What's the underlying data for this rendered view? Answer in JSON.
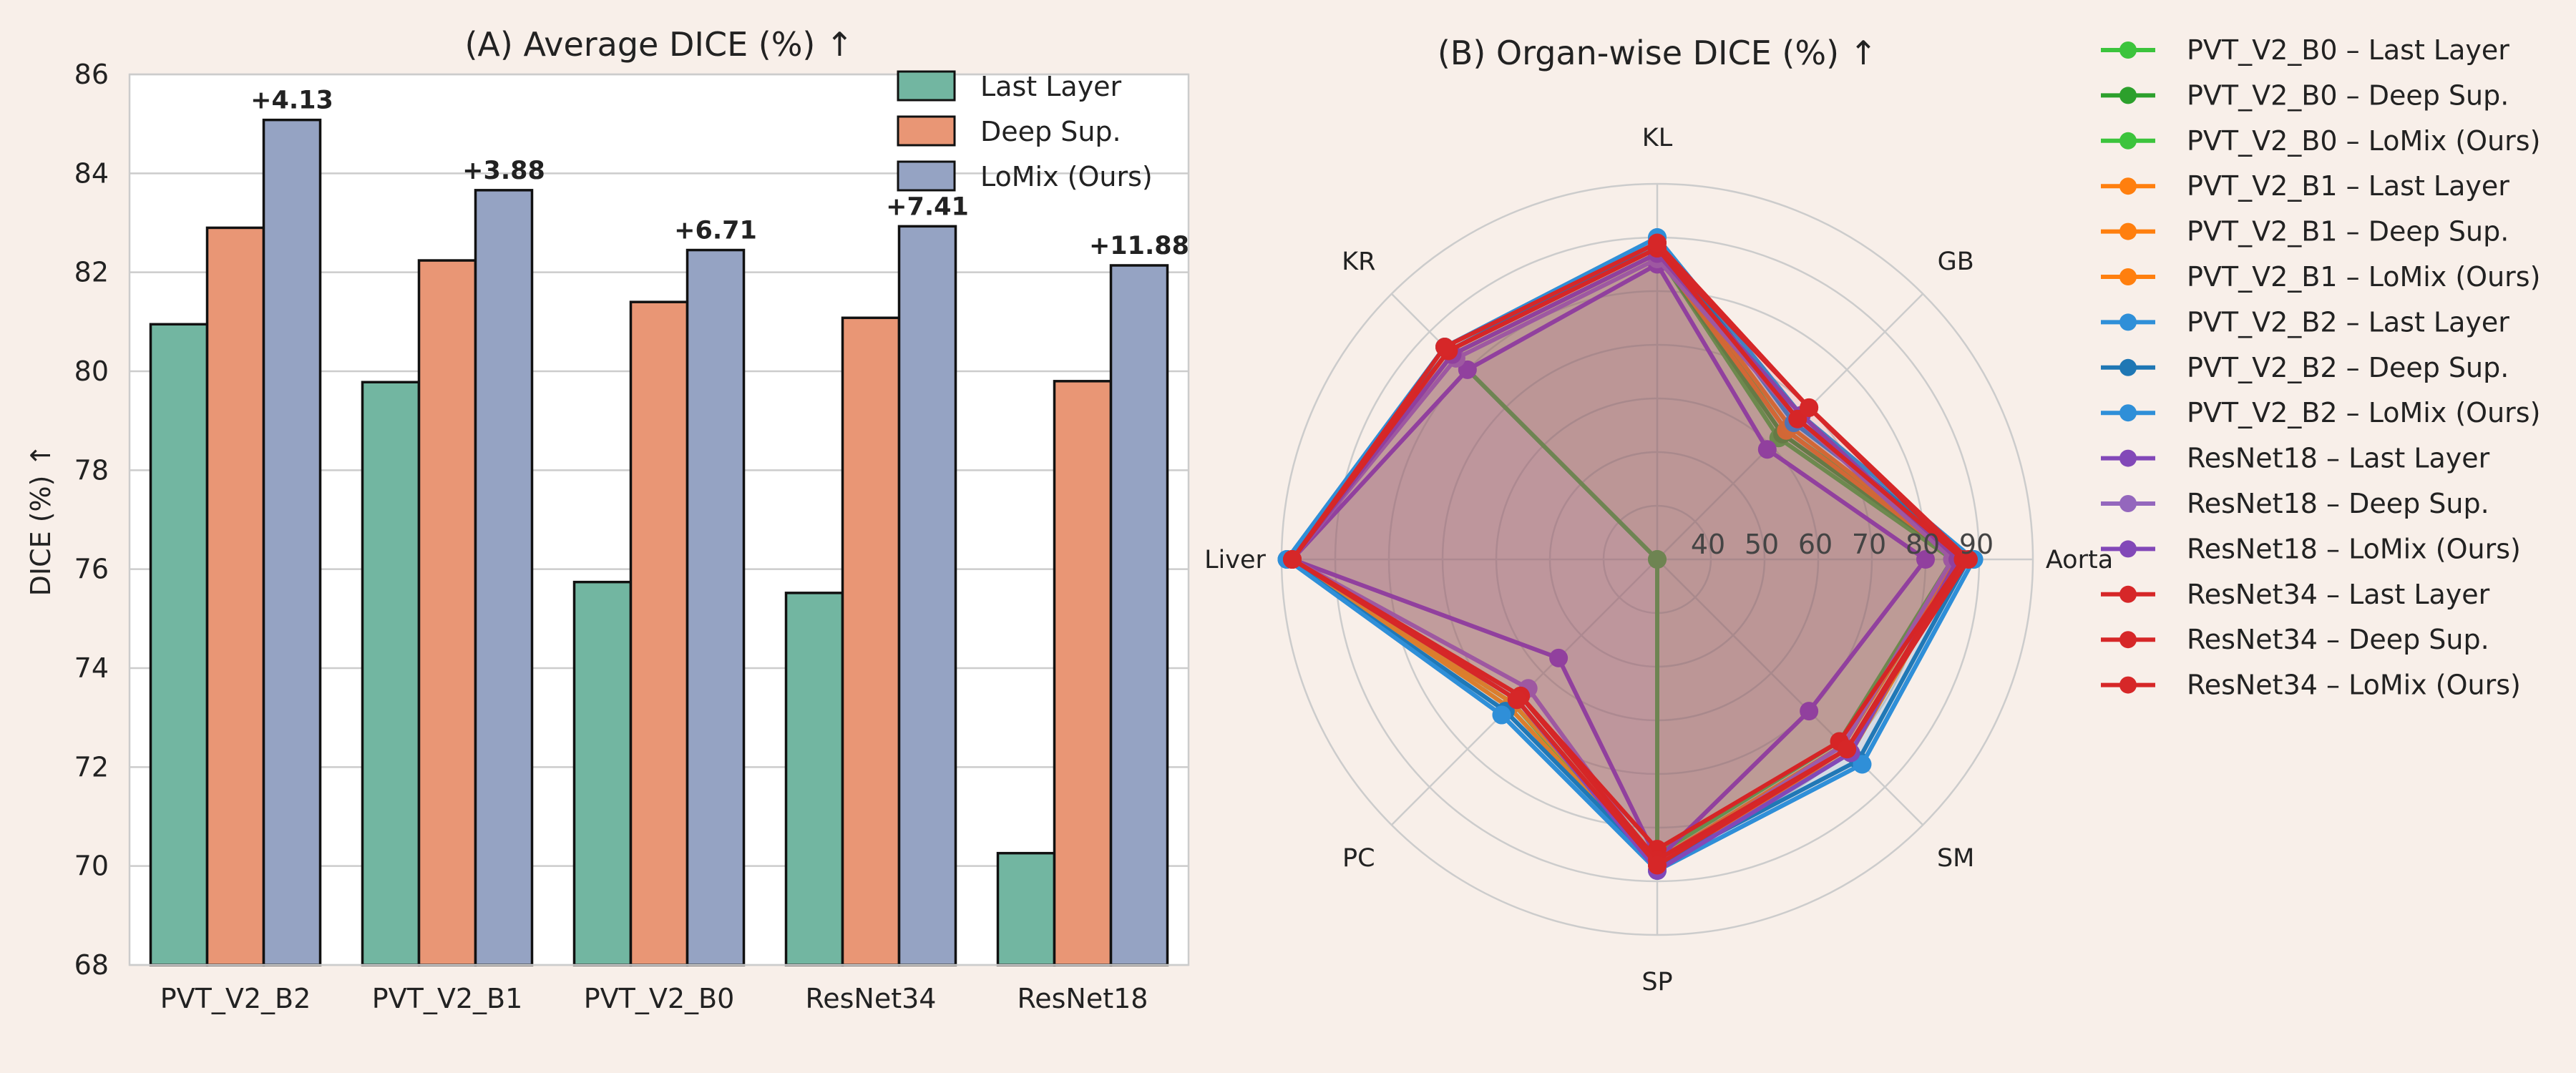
{
  "colors": {
    "background": "#f8efe9",
    "last_layer": "#72b6a1",
    "deep_sup": "#e99675",
    "lomix": "#95a3c3"
  },
  "chart_data": [
    {
      "type": "bar",
      "title": "(A) Average DICE (%) ↑",
      "xlabel": "",
      "ylabel": "DICE (%) ↑",
      "ylim": [
        68,
        86
      ],
      "yticks": [
        68,
        70,
        72,
        74,
        76,
        78,
        80,
        82,
        84,
        86
      ],
      "categories": [
        "PVT_V2_B2",
        "PVT_V2_B1",
        "PVT_V2_B0",
        "ResNet34",
        "ResNet18"
      ],
      "series": [
        {
          "name": "Last Layer",
          "values": [
            80.95,
            79.78,
            75.74,
            75.52,
            70.26
          ]
        },
        {
          "name": "Deep Sup.",
          "values": [
            82.9,
            82.24,
            81.4,
            81.08,
            79.8
          ]
        },
        {
          "name": "LoMix (Ours)",
          "values": [
            85.08,
            83.66,
            82.45,
            82.93,
            82.14
          ]
        }
      ],
      "annotations": [
        "+4.13",
        "+3.88",
        "+6.71",
        "+7.41",
        "+11.88"
      ],
      "legend_position": "top-right",
      "grid": true
    },
    {
      "type": "radar",
      "title": "(B) Organ-wise DICE (%) ↑",
      "axes": [
        "KL",
        "GB",
        "Aorta",
        "SM",
        "SP",
        "PC",
        "Liver",
        "KR"
      ],
      "radial_ticks": [
        "40",
        "50",
        "60",
        "70",
        "80",
        "90"
      ],
      "radial_range": [
        30,
        100
      ],
      "legend_position": "right",
      "series": [
        {
          "name": "PVT_V2_B0 – Last Layer",
          "color": "#3cc43c",
          "values": [
            87,
            62,
            85,
            78,
            85,
            30,
            30,
            84
          ]
        },
        {
          "name": "PVT_V2_B0 – Deep Sup.",
          "color": "#2ca02c",
          "values": [
            87,
            63,
            86,
            79,
            86,
            66,
            98,
            84
          ]
        },
        {
          "name": "PVT_V2_B0 – LoMix (Ours)",
          "color": "#3cc43c",
          "values": [
            88,
            64,
            87,
            80,
            87,
            68,
            98,
            85
          ]
        },
        {
          "name": "PVT_V2_B1 – Last Layer",
          "color": "#ff7f0e",
          "values": [
            87,
            64,
            86,
            79,
            86,
            66,
            98,
            84
          ]
        },
        {
          "name": "PVT_V2_B1 – Deep Sup.",
          "color": "#ff7f0e",
          "values": [
            88,
            65,
            87,
            80,
            86,
            68,
            98,
            85
          ]
        },
        {
          "name": "PVT_V2_B1 – LoMix (Ours)",
          "color": "#ff7f0e",
          "values": [
            89,
            67,
            87,
            81,
            87,
            69,
            98,
            86
          ]
        },
        {
          "name": "PVT_V2_B2 – Last Layer",
          "color": "#2f8fd8",
          "values": [
            90,
            66,
            89,
            84,
            88,
            71,
            99,
            86
          ]
        },
        {
          "name": "PVT_V2_B2 – Deep Sup.",
          "color": "#1f77b4",
          "values": [
            89,
            67,
            88,
            83,
            87,
            70,
            99,
            85
          ]
        },
        {
          "name": "PVT_V2_B2 – LoMix (Ours)",
          "color": "#2f8fd8",
          "values": [
            90,
            68,
            89,
            84,
            88,
            71,
            99,
            86
          ]
        },
        {
          "name": "ResNet18 – Last Layer",
          "color": "#8248b8",
          "values": [
            85,
            59,
            80,
            70,
            86,
            56,
            98,
            80
          ]
        },
        {
          "name": "ResNet18 – Deep Sup.",
          "color": "#9467bd",
          "values": [
            86,
            67,
            85,
            79,
            87,
            64,
            98,
            83
          ]
        },
        {
          "name": "ResNet18 – LoMix (Ours)",
          "color": "#8248b8",
          "values": [
            87,
            68,
            86,
            81,
            88,
            67,
            98,
            84
          ]
        },
        {
          "name": "ResNet34 – Last Layer",
          "color": "#d62728",
          "values": [
            88,
            70,
            87,
            78,
            84,
            66,
            98,
            85
          ]
        },
        {
          "name": "ResNet34 – Deep Sup.",
          "color": "#d62728",
          "values": [
            88,
            67,
            87,
            80,
            86,
            66,
            98,
            85
          ]
        },
        {
          "name": "ResNet34 – LoMix (Ours)",
          "color": "#d62728",
          "values": [
            89,
            70,
            88,
            80,
            87,
            67,
            98,
            86
          ]
        }
      ]
    }
  ]
}
